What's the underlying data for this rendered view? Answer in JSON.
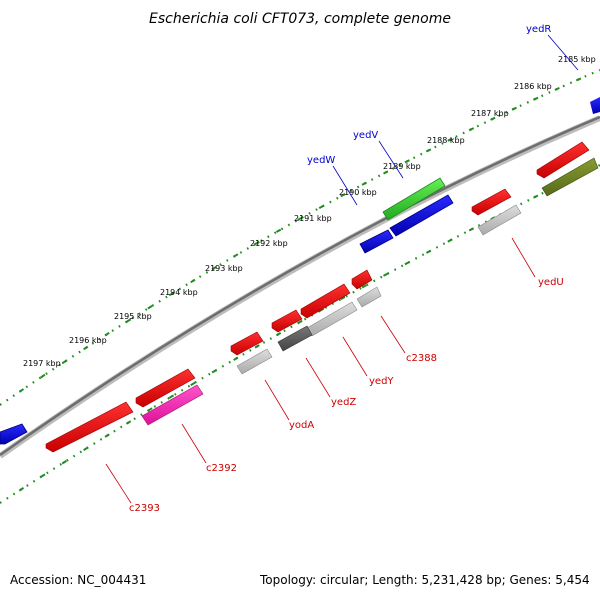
{
  "title": "Escherichia coli CFT073, complete genome",
  "footer": {
    "accession": "Accession: NC_004431",
    "summary": "Topology: circular; Length: 5,231,428 bp; Genes: 5,454"
  },
  "ticks": [
    "2185 kbp",
    "2186 kbp",
    "2187 kbp",
    "2188 kbp",
    "2189 kbp",
    "2190 kbp",
    "2191 kbp",
    "2192 kbp",
    "2193 kbp",
    "2194 kbp",
    "2195 kbp",
    "2196 kbp",
    "2197 kbp"
  ],
  "gene_labels": {
    "yedR": "yedR",
    "yedV": "yedV",
    "yedW": "yedW",
    "yedU": "yedU",
    "c2388": "c2388",
    "yedY": "yedY",
    "yedZ": "yedZ",
    "yodA": "yodA",
    "c2392": "c2392",
    "c2393": "c2393"
  },
  "colors": {
    "forward_label": "#0000cc",
    "reverse_label": "#cc0000",
    "tick_track": "#228b22",
    "backbone": "#808080"
  }
}
